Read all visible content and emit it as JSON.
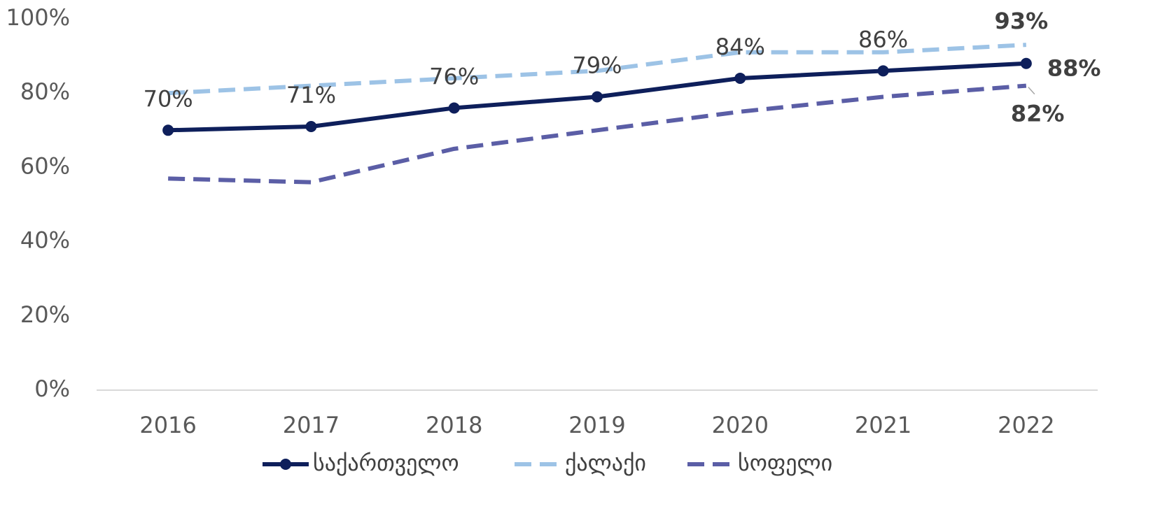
{
  "chart_data": {
    "type": "line",
    "categories": [
      "2016",
      "2017",
      "2018",
      "2019",
      "2020",
      "2021",
      "2022"
    ],
    "series": [
      {
        "name": "საქართველო",
        "color": "#0e1f5b",
        "dash": false,
        "markers": true,
        "values": [
          70,
          71,
          76,
          79,
          84,
          86,
          88
        ],
        "value_labels": [
          "70%",
          "71%",
          "76%",
          "79%",
          "84%",
          "86%",
          "88%"
        ]
      },
      {
        "name": "ქალაქი",
        "color": "#9dc3e6",
        "dash": true,
        "markers": false,
        "values": [
          80,
          82,
          84,
          86,
          91,
          91,
          93
        ],
        "value_labels": [
          null,
          null,
          null,
          null,
          null,
          null,
          "93%"
        ]
      },
      {
        "name": "სოფელი",
        "color": "#5b5ea6",
        "dash": true,
        "markers": false,
        "values": [
          57,
          56,
          65,
          70,
          75,
          79,
          82
        ],
        "value_labels": [
          null,
          null,
          null,
          null,
          null,
          null,
          "82%"
        ]
      }
    ],
    "ylim": [
      0,
      100
    ],
    "yticks": [
      {
        "value": 0,
        "label": "0%"
      },
      {
        "value": 20,
        "label": "20%"
      },
      {
        "value": 40,
        "label": "40%"
      },
      {
        "value": 60,
        "label": "60%"
      },
      {
        "value": 80,
        "label": "80%"
      },
      {
        "value": 100,
        "label": "100%"
      }
    ],
    "grid": false,
    "legend": "bottom"
  }
}
